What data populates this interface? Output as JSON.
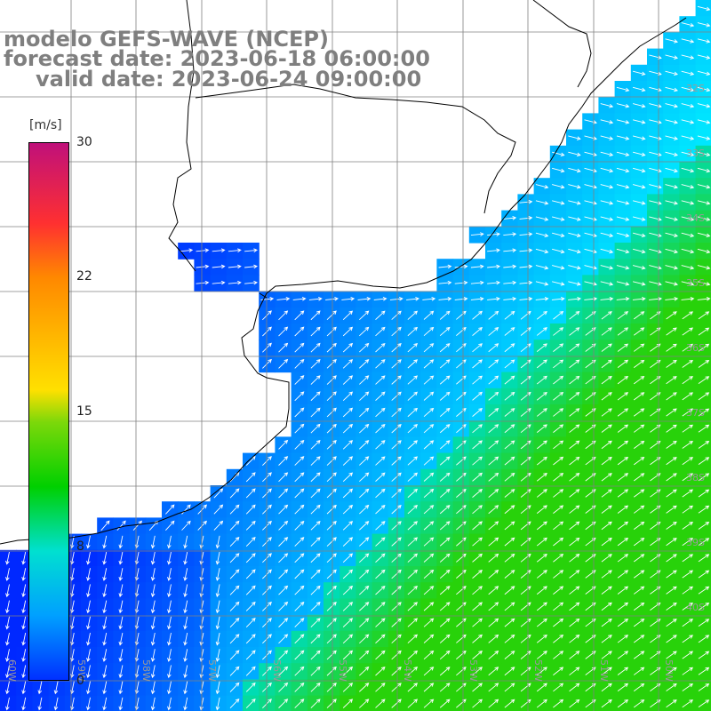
{
  "title": {
    "line1": "modelo GEFS-WAVE (NCEP)",
    "line2": "forecast date: 2023-06-18 06:00:00",
    "line3": "valid date: 2023-06-24 09:00:00"
  },
  "colorbar": {
    "unit": "[m/s]",
    "min": 0,
    "max": 30,
    "ticks": [
      "30",
      "22",
      "15",
      "8",
      "0"
    ]
  },
  "grid": {
    "lat_labels": [
      "32S",
      "33S",
      "34S",
      "35S",
      "36S",
      "37S",
      "38S",
      "39S",
      "40S"
    ],
    "lon_labels": [
      "60W",
      "59W",
      "58W",
      "57W",
      "56W",
      "55W",
      "54W",
      "53W",
      "52W",
      "51W",
      "50W"
    ]
  },
  "colors": {
    "land": "#ffffff",
    "low_wind": "#0050ff",
    "mid_wind": "#00c8ff",
    "high_wind": "#20d020",
    "arrow": "#ffffff",
    "grid_line": "#808080",
    "title_text": "#7f7f7f"
  }
}
